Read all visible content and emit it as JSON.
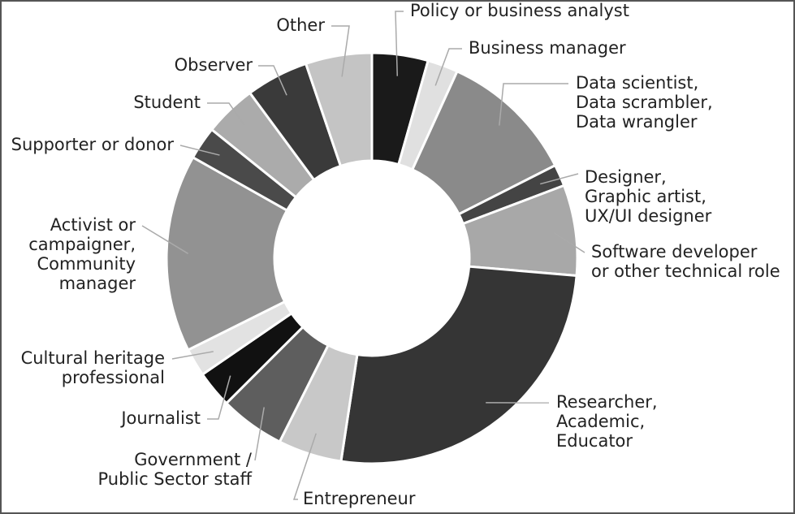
{
  "chart_data": {
    "type": "donut",
    "categories": [
      [
        "Policy or business analyst"
      ],
      [
        "Business manager"
      ],
      [
        "Data scientist,",
        "Data scrambler,",
        "Data wrangler"
      ],
      [
        "Designer,",
        "Graphic artist,",
        "UX/UI designer"
      ],
      [
        "Software developer",
        "or other technical role"
      ],
      [
        "Researcher,",
        "Academic,",
        "Educator"
      ],
      [
        "Entrepreneur"
      ],
      [
        "Government /",
        "Public Sector staff"
      ],
      [
        "Journalist"
      ],
      [
        "Cultural heritage",
        "professional"
      ],
      [
        "Activist or",
        "campaigner,",
        "Community",
        "manager"
      ],
      [
        "Supporter or donor"
      ],
      [
        "Student"
      ],
      [
        "Observer"
      ],
      [
        "Other"
      ]
    ],
    "values": [
      4.4,
      2.4,
      10.7,
      1.7,
      7.1,
      26,
      5,
      5.1,
      2.9,
      2.2,
      15.5,
      2.6,
      4.1,
      4.9,
      5.2
    ],
    "colors": [
      "#1a1a1a",
      "#e0e0e0",
      "#8a8a8a",
      "#444444",
      "#a8a8a8",
      "#353535",
      "#c8c8c8",
      "#5e5e5e",
      "#111111",
      "#e2e2e2",
      "#929292",
      "#4a4a4a",
      "#ababab",
      "#3a3a3a",
      "#c4c4c4"
    ]
  }
}
